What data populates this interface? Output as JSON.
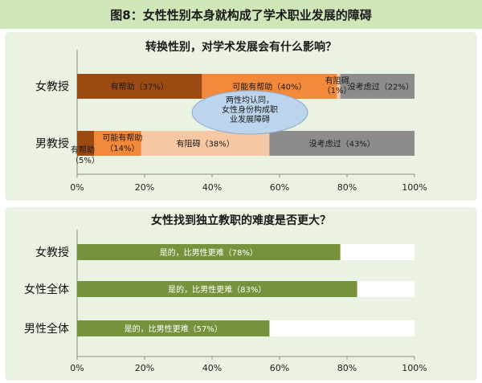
{
  "figure_title": "图8：女性性别本身就构成了学术职业发展的障碍",
  "chart_data": [
    {
      "type": "bar",
      "orientation": "horizontal",
      "stacked": true,
      "title": "转换性别，对学术发展会有什么影响？",
      "categories": [
        "女教授",
        "男教授"
      ],
      "series": [
        {
          "key": "help",
          "values": [
            37,
            5
          ],
          "labels": [
            "有帮助（37%）",
            "有帮助（5%）"
          ],
          "color": "#9c4a12"
        },
        {
          "key": "maybe_help",
          "values": [
            40,
            14
          ],
          "labels": [
            "可能有帮助（40%）",
            "可能有帮助（14%）"
          ],
          "color": "#f2883a"
        },
        {
          "key": "hinder",
          "values": [
            1,
            38
          ],
          "labels": [
            "有阻碍（1%）",
            "有阻碍（38%）"
          ],
          "color": "#f6c7a3"
        },
        {
          "key": "not_considered",
          "values": [
            22,
            43
          ],
          "labels": [
            "没考虑过（22%）",
            "没考虑过（43%）"
          ],
          "color": "#8c8c8c"
        }
      ],
      "annotation": "两性均认同，女性身份构成职业发展障碍",
      "x_ticks": [
        "0%",
        "20%",
        "40%",
        "60%",
        "80%",
        "100%"
      ],
      "xlim": [
        0,
        100
      ],
      "grid": false
    },
    {
      "type": "bar",
      "orientation": "horizontal",
      "stacked": false,
      "title": "女性找到独立教职的难度是否更大？",
      "categories": [
        "女教授",
        "女性全体",
        "男性全体"
      ],
      "series": [
        {
          "values": [
            78,
            83,
            57
          ],
          "labels": [
            "是的，比男性更难（78%）",
            "是的，比男性更难（83%）",
            "是的，比男性更难（57%）"
          ],
          "color": "#76923c",
          "track_color": "#ffffff"
        }
      ],
      "x_ticks": [
        "0%",
        "20%",
        "40%",
        "60%",
        "80%",
        "100%"
      ],
      "xlim": [
        0,
        100
      ],
      "grid": false
    }
  ]
}
